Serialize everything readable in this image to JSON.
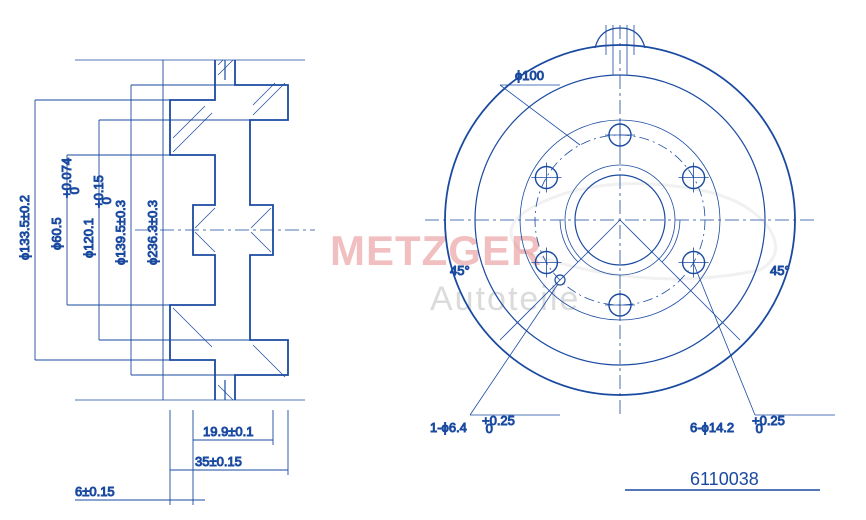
{
  "meta": {
    "type": "engineering-drawing",
    "part_number": "6110038",
    "line_color": "#1a4aa0",
    "background_color": "#ffffff",
    "watermark1": "METZGER",
    "watermark1_color": "#d94a4a",
    "watermark2": "Autoteile",
    "watermark2_color": "#b0b0b0"
  },
  "left_view": {
    "type": "section",
    "dimensions": {
      "dia133": "ϕ133.5±0.2",
      "dia60": "ϕ60.5",
      "tol60": "+0.074\n 0",
      "dia120": "ϕ120.1",
      "tol120": "+0.15\n 0",
      "dia139": "ϕ139.5±0.3",
      "dia236": "ϕ236.3±0.3",
      "w19": "19.9±0.1",
      "w35": "35±0.15",
      "w6": "6±0.15"
    }
  },
  "front_view": {
    "type": "circular",
    "dimensions": {
      "dia100": "ϕ100",
      "ang45_l": "45°",
      "ang45_r": "45°",
      "hole_small": "1-ϕ6.4",
      "tol_small": "+0.25\n 0",
      "hole_big": "6-ϕ14.2",
      "tol_big": "+0.25\n 0"
    },
    "bolt_holes": 6,
    "bolt_pcd_radius": 85,
    "bolt_hole_r": 11
  }
}
